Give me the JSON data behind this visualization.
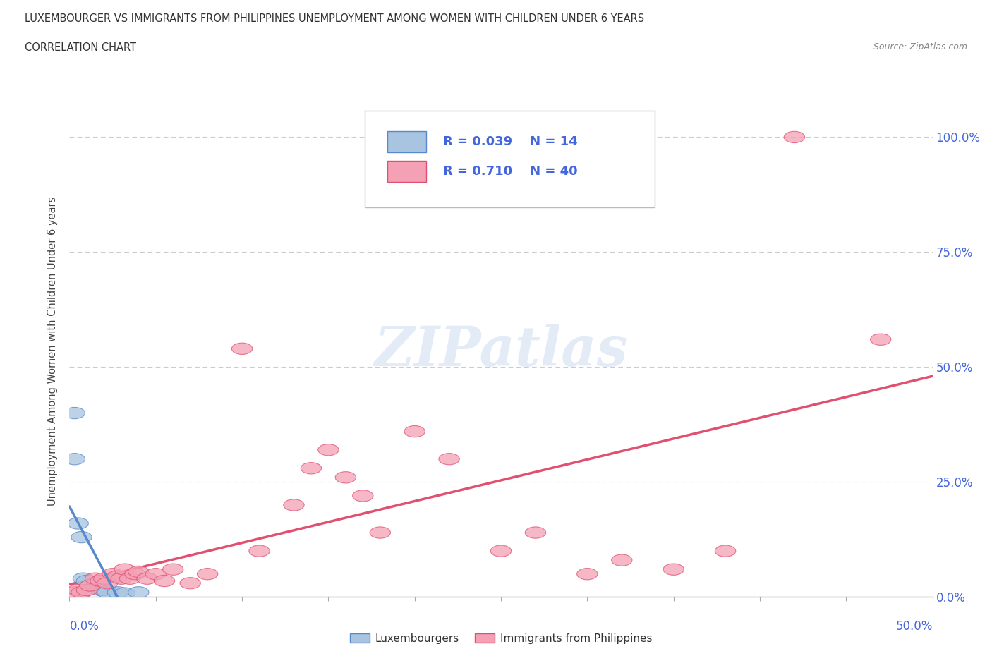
{
  "title_line1": "LUXEMBOURGER VS IMMIGRANTS FROM PHILIPPINES UNEMPLOYMENT AMONG WOMEN WITH CHILDREN UNDER 6 YEARS",
  "title_line2": "CORRELATION CHART",
  "source": "Source: ZipAtlas.com",
  "ylabel": "Unemployment Among Women with Children Under 6 years",
  "xlim": [
    0,
    50
  ],
  "ylim": [
    0,
    107
  ],
  "watermark": "ZIPatlas",
  "legend_box": {
    "R_lux": "0.039",
    "N_lux": "14",
    "R_phi": "0.710",
    "N_phi": "40"
  },
  "lux_color": "#a8c4e0",
  "phi_color": "#f4a0b5",
  "lux_line_color": "#5588cc",
  "phi_line_color": "#e05070",
  "lux_scatter": [
    [
      0.3,
      40.0
    ],
    [
      0.3,
      30.0
    ],
    [
      0.5,
      16.0
    ],
    [
      0.7,
      13.0
    ],
    [
      0.8,
      4.0
    ],
    [
      1.0,
      3.5
    ],
    [
      1.2,
      2.5
    ],
    [
      1.5,
      2.0
    ],
    [
      1.8,
      1.5
    ],
    [
      2.0,
      1.5
    ],
    [
      2.2,
      1.0
    ],
    [
      2.8,
      1.0
    ],
    [
      3.2,
      0.8
    ],
    [
      4.0,
      1.0
    ]
  ],
  "phi_scatter": [
    [
      0.3,
      1.0
    ],
    [
      0.5,
      1.5
    ],
    [
      0.7,
      1.0
    ],
    [
      1.0,
      1.5
    ],
    [
      1.2,
      2.5
    ],
    [
      1.5,
      4.0
    ],
    [
      1.8,
      3.5
    ],
    [
      2.0,
      4.0
    ],
    [
      2.2,
      3.0
    ],
    [
      2.5,
      5.0
    ],
    [
      2.8,
      4.5
    ],
    [
      3.0,
      4.0
    ],
    [
      3.2,
      6.0
    ],
    [
      3.5,
      4.0
    ],
    [
      3.8,
      5.0
    ],
    [
      4.0,
      5.5
    ],
    [
      4.5,
      4.0
    ],
    [
      5.0,
      5.0
    ],
    [
      5.5,
      3.5
    ],
    [
      6.0,
      6.0
    ],
    [
      7.0,
      3.0
    ],
    [
      8.0,
      5.0
    ],
    [
      10.0,
      54.0
    ],
    [
      11.0,
      10.0
    ],
    [
      13.0,
      20.0
    ],
    [
      14.0,
      28.0
    ],
    [
      15.0,
      32.0
    ],
    [
      16.0,
      26.0
    ],
    [
      17.0,
      22.0
    ],
    [
      18.0,
      14.0
    ],
    [
      20.0,
      36.0
    ],
    [
      22.0,
      30.0
    ],
    [
      25.0,
      10.0
    ],
    [
      27.0,
      14.0
    ],
    [
      30.0,
      5.0
    ],
    [
      32.0,
      8.0
    ],
    [
      35.0,
      6.0
    ],
    [
      38.0,
      10.0
    ],
    [
      42.0,
      100.0
    ],
    [
      47.0,
      56.0
    ]
  ],
  "grid_color": "#cccccc",
  "background_color": "#ffffff",
  "title_color": "#333333",
  "tick_color": "#4466dd"
}
